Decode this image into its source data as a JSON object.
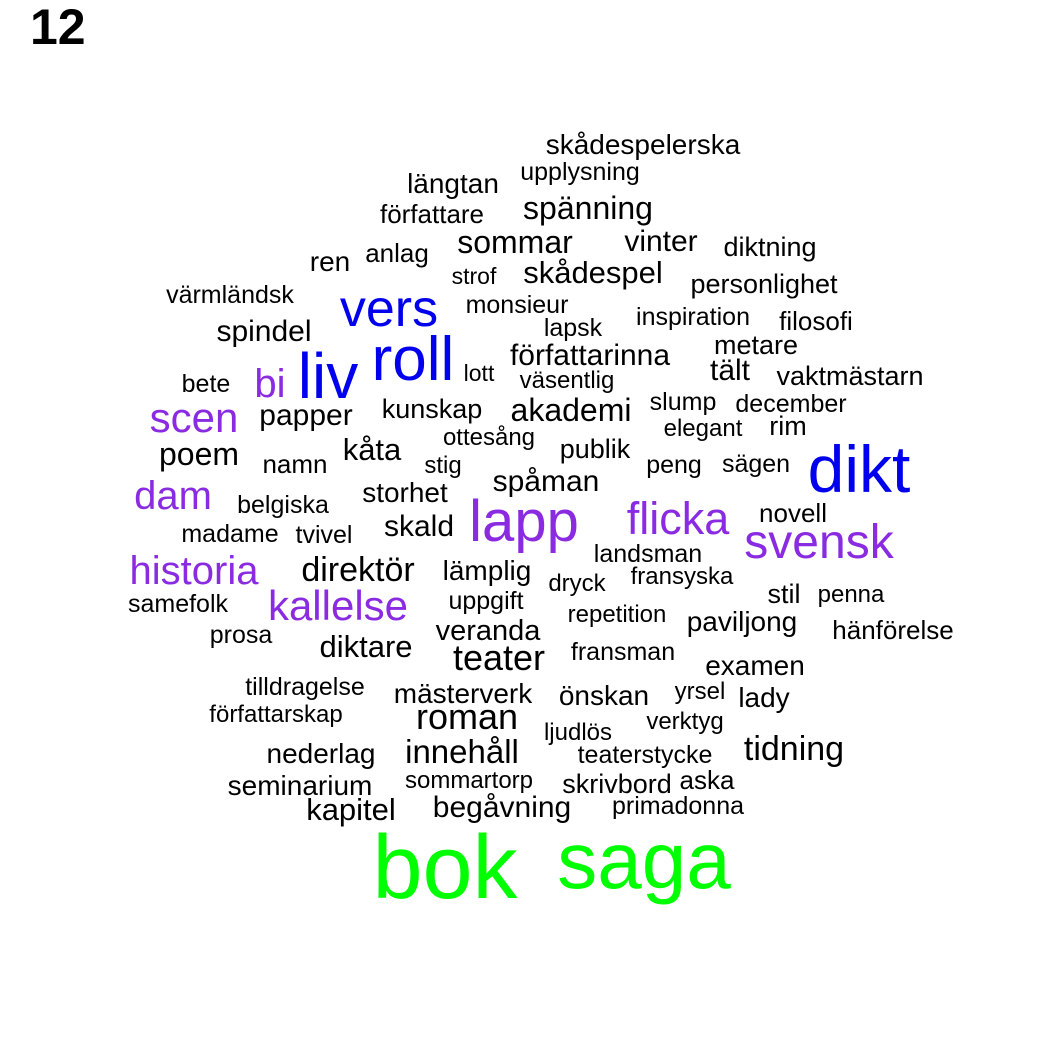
{
  "label": "12",
  "colors": {
    "tier1": "#00ff00",
    "tier2": "#0000ee",
    "tier3": "#8a2be2",
    "tier4": "#000000"
  },
  "words": [
    {
      "text": "skådespelerska",
      "tier": 4
    },
    {
      "text": "längtan",
      "tier": 4
    },
    {
      "text": "upplysning",
      "tier": 4
    },
    {
      "text": "spänning",
      "tier": 4
    },
    {
      "text": "författare",
      "tier": 4
    },
    {
      "text": "sommar",
      "tier": 4
    },
    {
      "text": "vinter",
      "tier": 4
    },
    {
      "text": "diktning",
      "tier": 4
    },
    {
      "text": "ren",
      "tier": 4
    },
    {
      "text": "anlag",
      "tier": 4
    },
    {
      "text": "strof",
      "tier": 4
    },
    {
      "text": "skådespel",
      "tier": 4
    },
    {
      "text": "personlighet",
      "tier": 4
    },
    {
      "text": "värmländsk",
      "tier": 4
    },
    {
      "text": "vers",
      "tier": 2
    },
    {
      "text": "monsieur",
      "tier": 4
    },
    {
      "text": "inspiration",
      "tier": 4
    },
    {
      "text": "filosofi",
      "tier": 4
    },
    {
      "text": "spindel",
      "tier": 4
    },
    {
      "text": "lapsk",
      "tier": 4
    },
    {
      "text": "roll",
      "tier": 2
    },
    {
      "text": "metare",
      "tier": 4
    },
    {
      "text": "författarinna",
      "tier": 4
    },
    {
      "text": "liv",
      "tier": 2
    },
    {
      "text": "tält",
      "tier": 4
    },
    {
      "text": "bi",
      "tier": 3
    },
    {
      "text": "lott",
      "tier": 4
    },
    {
      "text": "bete",
      "tier": 4
    },
    {
      "text": "väsentlig",
      "tier": 4
    },
    {
      "text": "vaktmästarn",
      "tier": 4
    },
    {
      "text": "slump",
      "tier": 4
    },
    {
      "text": "december",
      "tier": 4
    },
    {
      "text": "scen",
      "tier": 3
    },
    {
      "text": "papper",
      "tier": 4
    },
    {
      "text": "kunskap",
      "tier": 4
    },
    {
      "text": "akademi",
      "tier": 4
    },
    {
      "text": "elegant",
      "tier": 4
    },
    {
      "text": "rim",
      "tier": 4
    },
    {
      "text": "ottesång",
      "tier": 4
    },
    {
      "text": "poem",
      "tier": 4
    },
    {
      "text": "kåta",
      "tier": 4
    },
    {
      "text": "publik",
      "tier": 4
    },
    {
      "text": "namn",
      "tier": 4
    },
    {
      "text": "stig",
      "tier": 4
    },
    {
      "text": "peng",
      "tier": 4
    },
    {
      "text": "sägen",
      "tier": 4
    },
    {
      "text": "dikt",
      "tier": 2
    },
    {
      "text": "spåman",
      "tier": 4
    },
    {
      "text": "dam",
      "tier": 3
    },
    {
      "text": "storhet",
      "tier": 4
    },
    {
      "text": "belgiska",
      "tier": 4
    },
    {
      "text": "lapp",
      "tier": 3
    },
    {
      "text": "flicka",
      "tier": 3
    },
    {
      "text": "novell",
      "tier": 4
    },
    {
      "text": "skald",
      "tier": 4
    },
    {
      "text": "madame",
      "tier": 4
    },
    {
      "text": "tvivel",
      "tier": 4
    },
    {
      "text": "svensk",
      "tier": 3
    },
    {
      "text": "landsman",
      "tier": 4
    },
    {
      "text": "historia",
      "tier": 3
    },
    {
      "text": "direktör",
      "tier": 4
    },
    {
      "text": "lämplig",
      "tier": 4
    },
    {
      "text": "fransyska",
      "tier": 4
    },
    {
      "text": "dryck",
      "tier": 4
    },
    {
      "text": "stil",
      "tier": 4
    },
    {
      "text": "penna",
      "tier": 4
    },
    {
      "text": "samefolk",
      "tier": 4
    },
    {
      "text": "kallelse",
      "tier": 3
    },
    {
      "text": "uppgift",
      "tier": 4
    },
    {
      "text": "repetition",
      "tier": 4
    },
    {
      "text": "paviljong",
      "tier": 4
    },
    {
      "text": "prosa",
      "tier": 4
    },
    {
      "text": "veranda",
      "tier": 4
    },
    {
      "text": "hänförelse",
      "tier": 4
    },
    {
      "text": "diktare",
      "tier": 4
    },
    {
      "text": "teater",
      "tier": 4
    },
    {
      "text": "fransman",
      "tier": 4
    },
    {
      "text": "examen",
      "tier": 4
    },
    {
      "text": "tilldragelse",
      "tier": 4
    },
    {
      "text": "mästerverk",
      "tier": 4
    },
    {
      "text": "önskan",
      "tier": 4
    },
    {
      "text": "yrsel",
      "tier": 4
    },
    {
      "text": "lady",
      "tier": 4
    },
    {
      "text": "författarskap",
      "tier": 4
    },
    {
      "text": "roman",
      "tier": 4
    },
    {
      "text": "verktyg",
      "tier": 4
    },
    {
      "text": "ljudlös",
      "tier": 4
    },
    {
      "text": "tidning",
      "tier": 4
    },
    {
      "text": "nederlag",
      "tier": 4
    },
    {
      "text": "innehåll",
      "tier": 4
    },
    {
      "text": "teaterstycke",
      "tier": 4
    },
    {
      "text": "sommartorp",
      "tier": 4
    },
    {
      "text": "seminarium",
      "tier": 4
    },
    {
      "text": "skrivbord",
      "tier": 4
    },
    {
      "text": "aska",
      "tier": 4
    },
    {
      "text": "kapitel",
      "tier": 4
    },
    {
      "text": "begåvning",
      "tier": 4
    },
    {
      "text": "primadonna",
      "tier": 4
    },
    {
      "text": "bok",
      "tier": 1
    },
    {
      "text": "saga",
      "tier": 1
    }
  ]
}
